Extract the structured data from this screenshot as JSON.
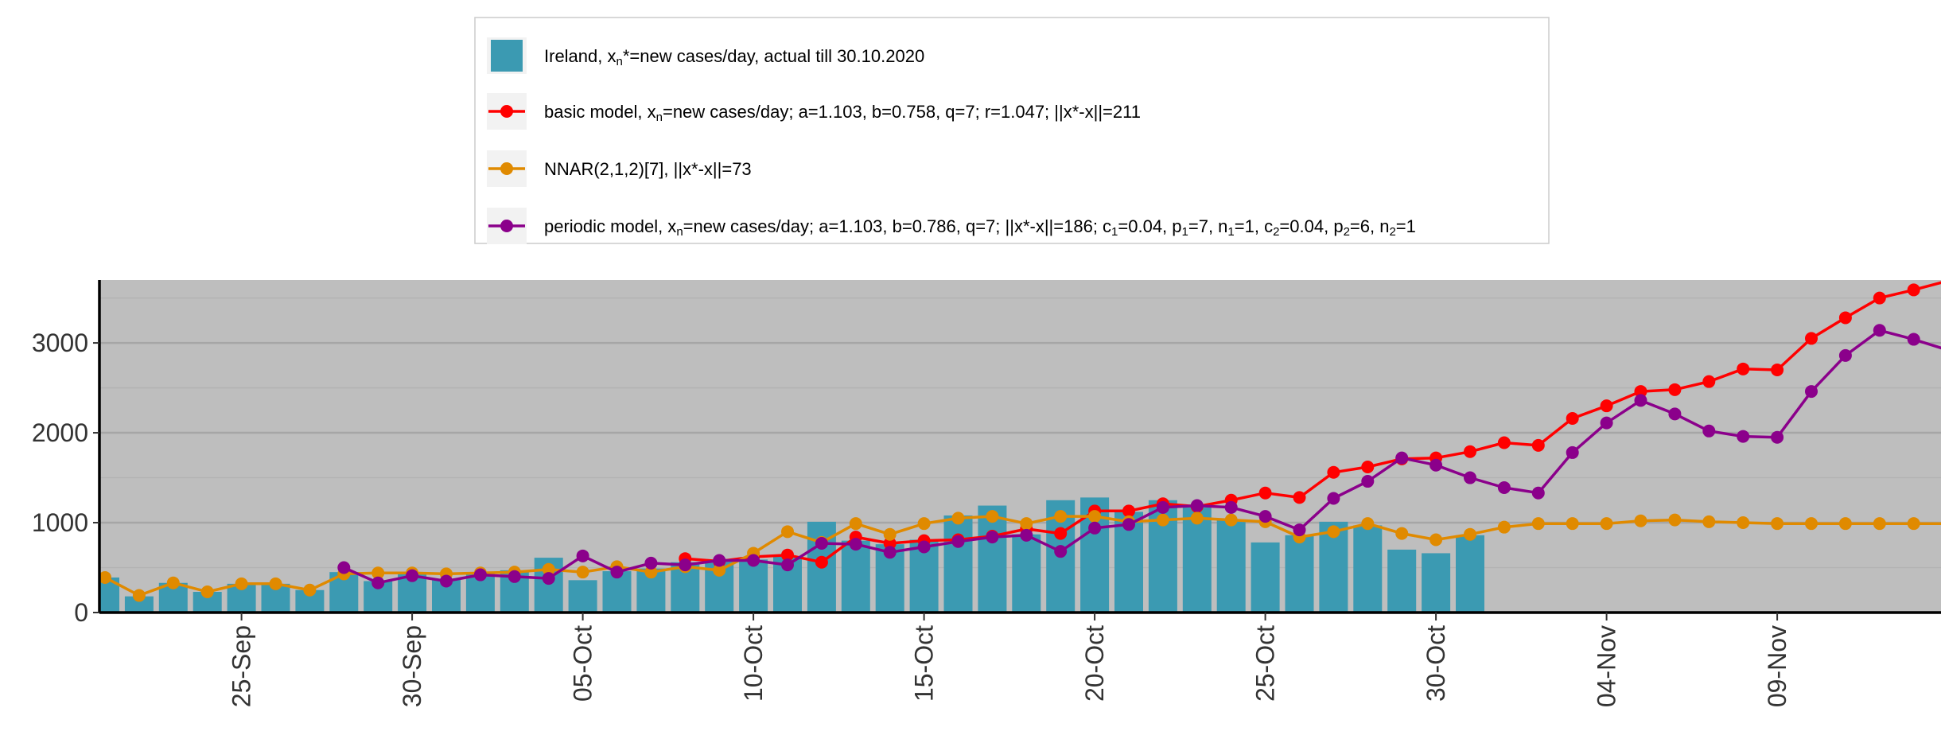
{
  "chart_data": {
    "type": "bar",
    "title": "",
    "xlabel": "",
    "ylabel": "",
    "ylim": [
      0,
      3700
    ],
    "y_ticks": [
      0,
      1000,
      2000,
      3000
    ],
    "y_tick_labels": [
      "0",
      "1000",
      "2000",
      "3000"
    ],
    "x_start_date": "2020-09-21",
    "x_tick_labels": [
      "25-Sep",
      "30-Sep",
      "05-Oct",
      "10-Oct",
      "15-Oct",
      "20-Oct",
      "25-Oct",
      "30-Oct",
      "04-Nov",
      "09-Nov"
    ],
    "x_tick_days": [
      4,
      9,
      14,
      19,
      24,
      29,
      34,
      39,
      44,
      49
    ],
    "grid": true,
    "background": "#bebebe",
    "legend_position": "top",
    "legend": [
      {
        "kind": "bar",
        "color": "#3b9ab2",
        "parts": [
          [
            "Ireland, x",
            ""
          ],
          [
            "n",
            "sub"
          ],
          [
            "*=new cases/day, actual till 30.10.2020",
            ""
          ]
        ]
      },
      {
        "kind": "line",
        "color": "#ff0000",
        "parts": [
          [
            "basic model,  x",
            ""
          ],
          [
            "n",
            "sub"
          ],
          [
            "=new cases/day; a=1.103, b=0.758, q=7;  r=1.047; ||x*-x||=211",
            ""
          ]
        ]
      },
      {
        "kind": "line",
        "color": "#e08a00",
        "parts": [
          [
            "NNAR(2,1,2)[7], ||x*-x||=73",
            ""
          ]
        ]
      },
      {
        "kind": "line",
        "color": "#8b008b",
        "parts": [
          [
            "periodic model, x",
            ""
          ],
          [
            "n",
            "sub"
          ],
          [
            "=new cases/day; a=1.103, b=0.786, q=7; ||x*-x||=186; c",
            ""
          ],
          [
            "1",
            "sub"
          ],
          [
            "=0.04, p",
            ""
          ],
          [
            "1",
            "sub"
          ],
          [
            "=7, n",
            ""
          ],
          [
            "1",
            "sub"
          ],
          [
            "=1, c",
            ""
          ],
          [
            "2",
            "sub"
          ],
          [
            "=0.04, p",
            ""
          ],
          [
            "2",
            "sub"
          ],
          [
            "=6, n",
            ""
          ],
          [
            "2",
            "sub"
          ],
          [
            "=1",
            ""
          ]
        ]
      }
    ],
    "bars": {
      "name": "Ireland",
      "color": "#3b9ab2",
      "values": [
        390,
        180,
        330,
        230,
        320,
        320,
        250,
        450,
        350,
        430,
        370,
        430,
        470,
        610,
        360,
        460,
        490,
        560,
        580,
        590,
        620,
        1010,
        800,
        760,
        810,
        1080,
        1190,
        870,
        1250,
        1280,
        1120,
        1250,
        1170,
        1030,
        780,
        860,
        1010,
        970,
        700,
        660,
        860
      ]
    },
    "series": [
      {
        "name": "basic model",
        "color": "#ff0000",
        "values": [
          null,
          null,
          null,
          null,
          null,
          null,
          null,
          null,
          null,
          null,
          null,
          null,
          null,
          null,
          null,
          null,
          null,
          600,
          570,
          620,
          640,
          560,
          840,
          770,
          800,
          810,
          850,
          930,
          880,
          1130,
          1130,
          1210,
          1180,
          1250,
          1330,
          1280,
          1560,
          1620,
          1710,
          1720,
          1790,
          1890,
          1860,
          2160,
          2300,
          2460,
          2480,
          2570,
          2710,
          2700,
          3050,
          3280,
          3500,
          3590,
          3690
        ]
      },
      {
        "name": "NNAR(2,1,2)[7]",
        "color": "#e08a00",
        "values": [
          390,
          190,
          330,
          230,
          320,
          320,
          250,
          430,
          440,
          440,
          430,
          440,
          450,
          480,
          450,
          510,
          450,
          510,
          470,
          660,
          900,
          780,
          990,
          870,
          990,
          1050,
          1070,
          990,
          1070,
          1070,
          1010,
          1030,
          1050,
          1030,
          1010,
          840,
          900,
          990,
          880,
          810,
          870,
          950,
          990,
          990,
          990,
          1020,
          1030,
          1010,
          1000,
          990,
          990,
          990,
          990,
          990,
          990
        ]
      },
      {
        "name": "periodic model",
        "color": "#8b008b",
        "values": [
          null,
          null,
          null,
          null,
          null,
          null,
          null,
          500,
          330,
          410,
          350,
          420,
          400,
          380,
          630,
          450,
          550,
          530,
          580,
          580,
          530,
          770,
          760,
          670,
          730,
          790,
          840,
          860,
          680,
          940,
          980,
          1170,
          1190,
          1170,
          1070,
          920,
          1270,
          1460,
          1720,
          1640,
          1500,
          1390,
          1330,
          1780,
          2110,
          2360,
          2210,
          2020,
          1960,
          1950,
          2460,
          2860,
          3140,
          3040,
          2920
        ]
      }
    ]
  }
}
